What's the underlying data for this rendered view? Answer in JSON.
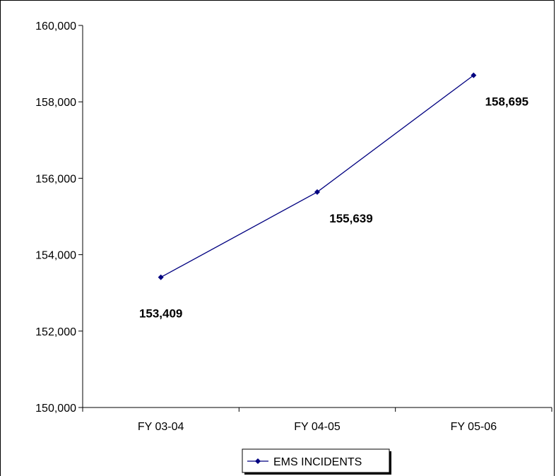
{
  "chart_data": {
    "type": "line",
    "title": "",
    "xlabel": "",
    "ylabel": "",
    "categories": [
      "FY 03-04",
      "FY 04-05",
      "FY 05-06"
    ],
    "series": [
      {
        "name": "EMS INCIDENTS",
        "values": [
          153409,
          155639,
          158695
        ],
        "data_labels": [
          "153,409",
          "155,639",
          "158,695"
        ],
        "color": "#000080",
        "marker": "diamond"
      }
    ],
    "ylim": [
      150000,
      160000
    ],
    "yticks": [
      150000,
      152000,
      154000,
      156000,
      158000,
      160000
    ],
    "ytick_labels": [
      "150,000",
      "152,000",
      "154,000",
      "156,000",
      "158,000",
      "160,000"
    ],
    "grid": false,
    "legend": {
      "placement": "bottom",
      "entries": [
        "EMS INCIDENTS"
      ]
    }
  }
}
